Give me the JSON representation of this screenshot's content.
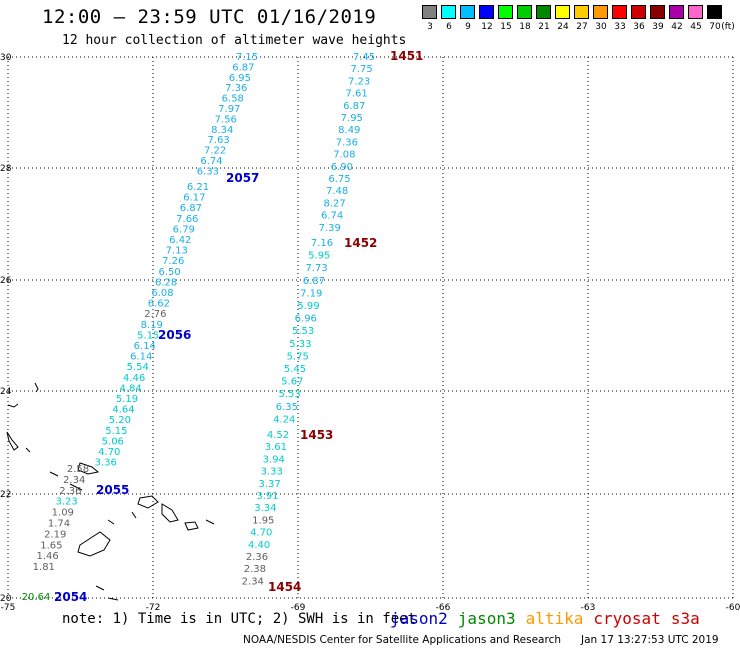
{
  "title": "12:00 – 23:59 UTC 01/16/2019",
  "subtitle": "12 hour collection of altimeter wave heights",
  "legend": {
    "unit": "(ft)",
    "bins": [
      {
        "label": "3",
        "color": "#808080"
      },
      {
        "label": "6",
        "color": "#00ffff"
      },
      {
        "label": "9",
        "color": "#00bfff"
      },
      {
        "label": "12",
        "color": "#0000ff"
      },
      {
        "label": "15",
        "color": "#00ff00"
      },
      {
        "label": "18",
        "color": "#00cc00"
      },
      {
        "label": "21",
        "color": "#008800"
      },
      {
        "label": "24",
        "color": "#ffff00"
      },
      {
        "label": "27",
        "color": "#ffcc00"
      },
      {
        "label": "30",
        "color": "#ff9900"
      },
      {
        "label": "33",
        "color": "#ff0000"
      },
      {
        "label": "36",
        "color": "#cc0000"
      },
      {
        "label": "39",
        "color": "#880000"
      },
      {
        "label": "42",
        "color": "#aa00aa"
      },
      {
        "label": "45",
        "color": "#ff66cc"
      },
      {
        "label": "70",
        "color": "#000000"
      }
    ]
  },
  "axes": {
    "lon_labels": [
      "-75",
      "-72",
      "-69",
      "-66",
      "-63",
      "-60"
    ],
    "lat_labels": [
      "30",
      "28",
      "26",
      "24",
      "22",
      "20"
    ]
  },
  "tracks": [
    {
      "label": "2057",
      "color": "#0000cc",
      "values": [
        "7.15",
        "6.87",
        "6.95",
        "7.36",
        "6.58",
        "7.97",
        "7.56",
        "8.34",
        "7.63",
        "7.22",
        "6.74",
        "6.33"
      ]
    },
    {
      "label": "2056",
      "color": "#0000cc",
      "values": [
        "6.21",
        "6.17",
        "6.87",
        "7.66",
        "6.79",
        "6.42",
        "7.13",
        "7.26",
        "6.50",
        "6.28",
        "6.08",
        "6.62",
        "2.76",
        "8.19",
        "5.15",
        "6.14",
        "6.14",
        "5.54",
        "4.46",
        "4.84",
        "5.19",
        "4.64",
        "5.20",
        "5.15",
        "5.06",
        "4.70",
        "3.36"
      ]
    },
    {
      "label": "2055",
      "color": "#0000cc",
      "values": [
        "2.58",
        "2.34",
        "2.36",
        "3.23",
        "1.09",
        "1.74",
        "2.19",
        "1.65",
        "1.46",
        "1.81"
      ]
    },
    {
      "label": "2054",
      "color": "#0000cc",
      "values": [
        "20.64"
      ]
    },
    {
      "label": "1451",
      "color": "#880000",
      "values": [
        "7.45",
        "7.75",
        "7.23",
        "7.61",
        "6.87",
        "7.95",
        "8.49",
        "7.36",
        "7.08",
        "6.90",
        "6.75",
        "7.48",
        "8.27",
        "6.74",
        "7.39"
      ]
    },
    {
      "label": "1452",
      "color": "#880000",
      "values": [
        "7.16",
        "5.95",
        "7.73",
        "6.87",
        "7.19",
        "5.99",
        "6.96",
        "5.53",
        "5.33",
        "5.75",
        "5.45",
        "5.67",
        "5.53",
        "6.35",
        "4.24"
      ]
    },
    {
      "label": "1453",
      "color": "#880000",
      "values": [
        "4.52",
        "3.61",
        "3.94",
        "3.33",
        "3.37",
        "3.91",
        "3.34",
        "1.95",
        "4.70",
        "4.40",
        "2.36",
        "2.38",
        "2.34"
      ]
    },
    {
      "label": "1454",
      "color": "#880000",
      "values": []
    }
  ],
  "note": "note: 1) Time is in UTC; 2) SWH is in feet",
  "satellites": [
    {
      "name": "jason2",
      "color": "#0000cc"
    },
    {
      "name": "jason3",
      "color": "#008800"
    },
    {
      "name": "altika",
      "color": "#ff9900"
    },
    {
      "name": "cryosat",
      "color": "#cc0000"
    },
    {
      "name": "s3a",
      "color": "#cc0000"
    }
  ],
  "footer": "NOAA/NESDIS Center for Satellite Applications and Research",
  "timestamp": "Jan 17 13:27:53 UTC 2019"
}
